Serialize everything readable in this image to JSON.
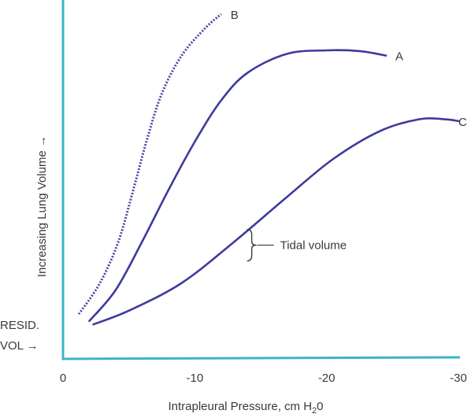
{
  "chart_data": {
    "type": "line",
    "title": "",
    "xlabel": "Intrapleural Pressure, cm H",
    "xlabel_sub": "2",
    "xlabel_tail": "0",
    "ylabel": "Increasing Lung Volume →",
    "xlim": [
      0,
      -30
    ],
    "xticks": [
      {
        "value": 0,
        "label": "0"
      },
      {
        "value": -10,
        "label": "-10"
      },
      {
        "value": -20,
        "label": "-20"
      },
      {
        "value": -30,
        "label": "-30"
      }
    ],
    "ylim": [
      0,
      100
    ],
    "grid": false,
    "axis_color": "#3bb5c8",
    "residual_label": [
      "RESID.",
      "VOL →"
    ],
    "residual_level": 13,
    "series": [
      {
        "name": "B",
        "style": "dotted",
        "color": "#4b45a8",
        "x": [
          -1.2,
          -2.8,
          -4.2,
          -5.4,
          -6.4,
          -7.5,
          -9,
          -10.8,
          -12
        ],
        "y": [
          13,
          22,
          34,
          50,
          64,
          77,
          88,
          96,
          100
        ]
      },
      {
        "name": "A",
        "style": "solid",
        "color": "#3e3a9e",
        "x": [
          -2,
          -4,
          -6,
          -8,
          -10,
          -12,
          -14,
          -17,
          -20,
          -22.5,
          -24.5
        ],
        "y": [
          11,
          20,
          34,
          49,
          63,
          75,
          83,
          88.5,
          89.5,
          89.3,
          88
        ]
      },
      {
        "name": "C",
        "style": "solid",
        "color": "#3e3a9e",
        "x": [
          -2.3,
          -5,
          -9,
          -13,
          -17,
          -20.5,
          -24,
          -27,
          -29,
          -30
        ],
        "y": [
          10,
          14,
          22,
          34,
          47,
          58,
          66,
          69.5,
          69.5,
          69
        ]
      }
    ],
    "annotations": [
      {
        "text": "Tidal volume",
        "x": -14.2,
        "y": 33
      }
    ]
  }
}
